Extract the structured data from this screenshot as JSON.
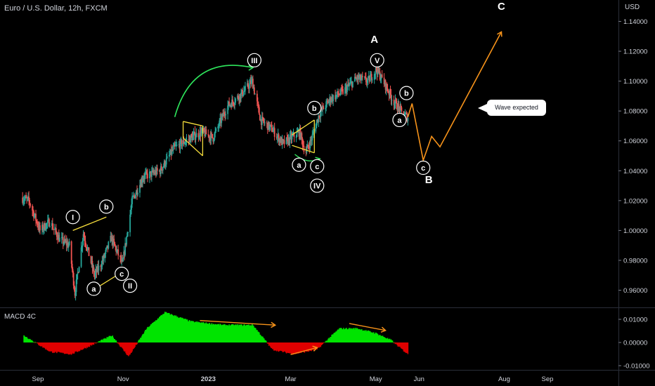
{
  "header": {
    "symbol": "Euro / U.S. Dollar, 12h, FXCM",
    "currency": "USD"
  },
  "indicator": {
    "name": "MACD 4C"
  },
  "callout": "Wave expected",
  "colors": {
    "bg": "#000000",
    "up": "#26a69a",
    "down": "#ef5350",
    "macd_pos": "#00e400",
    "macd_neg": "#e00000",
    "wave": "#f7931a",
    "yellow": "#f5dd3c",
    "green_arrow": "#2ee65c"
  },
  "chart_data": [
    {
      "type": "candlestick",
      "title": "Euro / U.S. Dollar, 12h, FXCM",
      "x_ticks": [
        "Sep",
        "Nov",
        "2023",
        "Mar",
        "May",
        "Jun",
        "Aug",
        "Sep"
      ],
      "y_ticks": [
        "1.14000",
        "1.12000",
        "1.10000",
        "1.08000",
        "1.06000",
        "1.04000",
        "1.02000",
        "1.00000",
        "0.98000",
        "0.96000"
      ],
      "ylim": [
        0.9485,
        1.1515
      ],
      "price_path": [
        {
          "x": "Aug 20",
          "y": 1.022
        },
        {
          "x": "Aug 26",
          "y": 1.02
        },
        {
          "x": "Sep 3",
          "y": 1.0
        },
        {
          "x": "Sep 10",
          "y": 1.006
        },
        {
          "x": "Sep 17",
          "y": 0.994
        },
        {
          "x": "Sep 24",
          "y": 0.99
        },
        {
          "x": "Sep 28",
          "y": 0.958
        },
        {
          "x": "Oct 4",
          "y": 0.998
        },
        {
          "x": "Oct 12",
          "y": 0.97
        },
        {
          "x": "Oct 18",
          "y": 0.98
        },
        {
          "x": "Oct 24",
          "y": 0.995
        },
        {
          "x": "Nov 1",
          "y": 0.977
        },
        {
          "x": "Nov 8",
          "y": 1.02
        },
        {
          "x": "Nov 16",
          "y": 1.036
        },
        {
          "x": "Nov 28",
          "y": 1.04
        },
        {
          "x": "Dec 8",
          "y": 1.055
        },
        {
          "x": "Dec 20",
          "y": 1.062
        },
        {
          "x": "Dec 28",
          "y": 1.066
        },
        {
          "x": "Jan 5",
          "y": 1.062
        },
        {
          "x": "Jan 15",
          "y": 1.083
        },
        {
          "x": "Jan 26",
          "y": 1.092
        },
        {
          "x": "Feb 2",
          "y": 1.1
        },
        {
          "x": "Feb 8",
          "y": 1.074
        },
        {
          "x": "Feb 16",
          "y": 1.068
        },
        {
          "x": "Feb 24",
          "y": 1.058
        },
        {
          "x": "Mar 2",
          "y": 1.062
        },
        {
          "x": "Mar 8",
          "y": 1.066
        },
        {
          "x": "Mar 12",
          "y": 1.052
        },
        {
          "x": "Mar 16",
          "y": 1.06
        },
        {
          "x": "Mar 22",
          "y": 1.078
        },
        {
          "x": "Mar 30",
          "y": 1.088
        },
        {
          "x": "Apr 8",
          "y": 1.093
        },
        {
          "x": "Apr 18",
          "y": 1.102
        },
        {
          "x": "Apr 26",
          "y": 1.1
        },
        {
          "x": "May 2",
          "y": 1.108
        },
        {
          "x": "May 8",
          "y": 1.098
        },
        {
          "x": "May 14",
          "y": 1.087
        },
        {
          "x": "May 20",
          "y": 1.079
        },
        {
          "x": "May 24",
          "y": 1.076
        }
      ],
      "projection": [
        {
          "x": "May 24",
          "y": 1.076
        },
        {
          "x": "May 27",
          "y": 1.085
        },
        {
          "x": "Jun 4",
          "y": 1.047
        },
        {
          "x": "Jun 10",
          "y": 1.063
        },
        {
          "x": "Jun 16",
          "y": 1.056
        },
        {
          "x": "Jul 30",
          "y": 1.133
        }
      ],
      "wave_labels": [
        {
          "text": "I",
          "x": "Sep 26",
          "y": 1.009,
          "circle": true
        },
        {
          "text": "a",
          "x": "Oct 11",
          "y": 0.961,
          "circle": true
        },
        {
          "text": "b",
          "x": "Oct 20",
          "y": 1.016,
          "circle": true
        },
        {
          "text": "c",
          "x": "Oct 31",
          "y": 0.971,
          "circle": true
        },
        {
          "text": "II",
          "x": "Nov 6",
          "y": 0.963,
          "circle": true
        },
        {
          "text": "III",
          "x": "Feb 3",
          "y": 1.114,
          "circle": true
        },
        {
          "text": "b",
          "x": "Mar 18",
          "y": 1.082,
          "circle": true
        },
        {
          "text": "a",
          "x": "Mar 7",
          "y": 1.044,
          "circle": true
        },
        {
          "text": "c",
          "x": "Mar 20",
          "y": 1.043,
          "circle": true
        },
        {
          "text": "IV",
          "x": "Mar 20",
          "y": 1.03,
          "circle": true
        },
        {
          "text": "V",
          "x": "May 2",
          "y": 1.114,
          "circle": true
        },
        {
          "text": "b",
          "x": "May 23",
          "y": 1.092,
          "circle": true
        },
        {
          "text": "a",
          "x": "May 18",
          "y": 1.074,
          "circle": true
        },
        {
          "text": "c",
          "x": "Jun 4",
          "y": 1.042,
          "circle": true
        },
        {
          "text": "A",
          "x": "Apr 30",
          "y": 1.128,
          "circle": false
        },
        {
          "text": "B",
          "x": "Jun 8",
          "y": 1.034,
          "circle": false
        },
        {
          "text": "C",
          "x": "Jul 30",
          "y": 1.15,
          "circle": false
        }
      ]
    },
    {
      "type": "bar",
      "title": "MACD 4C",
      "y_ticks": [
        "0.01000",
        "0.00000",
        "-0.01000"
      ],
      "ylim": [
        -0.0115,
        0.0135
      ],
      "x": [
        "Aug 22",
        "Sep 10",
        "Sep 25",
        "Oct 10",
        "Oct 24",
        "Nov 5",
        "Nov 18",
        "Dec 1",
        "Dec 20",
        "Jan 12",
        "Feb 2",
        "Feb 16",
        "Mar 3",
        "Mar 20",
        "Apr 5",
        "Apr 18",
        "May 1",
        "May 12",
        "May 24"
      ],
      "values": [
        0.003,
        -0.004,
        -0.005,
        -0.001,
        0.003,
        -0.006,
        0.006,
        0.013,
        0.009,
        0.0075,
        0.0075,
        -0.003,
        -0.005,
        -0.003,
        0.006,
        0.006,
        0.004,
        0.001,
        -0.005
      ]
    }
  ]
}
